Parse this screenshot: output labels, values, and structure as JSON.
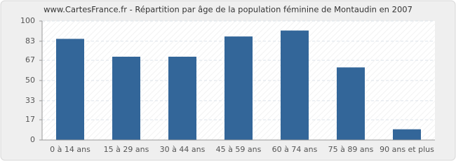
{
  "chart_data": {
    "type": "bar",
    "title": "www.CartesFrance.fr - Répartition par âge de la population féminine de Montaudin en 2007",
    "categories": [
      "0 à 14 ans",
      "15 à 29 ans",
      "30 à 44 ans",
      "45 à 59 ans",
      "60 à 74 ans",
      "75 à 89 ans",
      "90 ans et plus"
    ],
    "values": [
      85,
      70,
      70,
      87,
      92,
      61,
      9
    ],
    "color": "#336699",
    "ylim": [
      0,
      100
    ],
    "yticks": [
      0,
      17,
      33,
      50,
      67,
      83,
      100
    ],
    "grid": true
  }
}
